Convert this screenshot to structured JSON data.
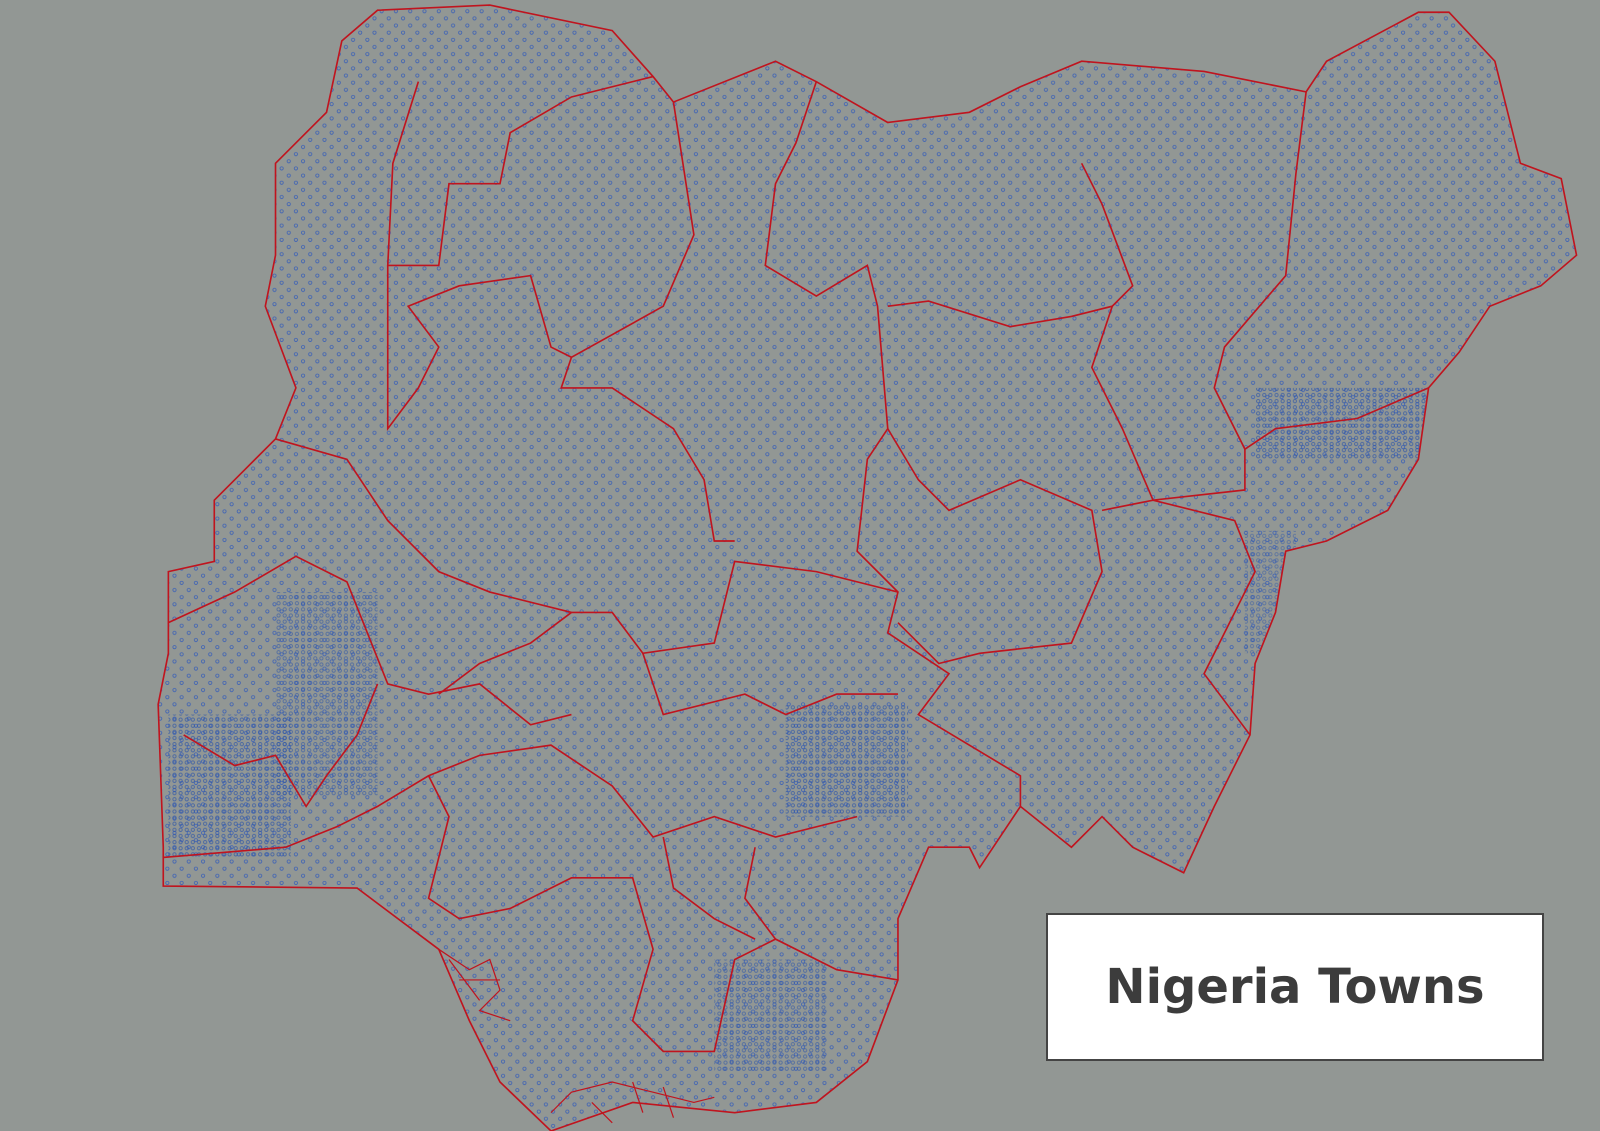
{
  "title": "Nigeria Towns"
}
